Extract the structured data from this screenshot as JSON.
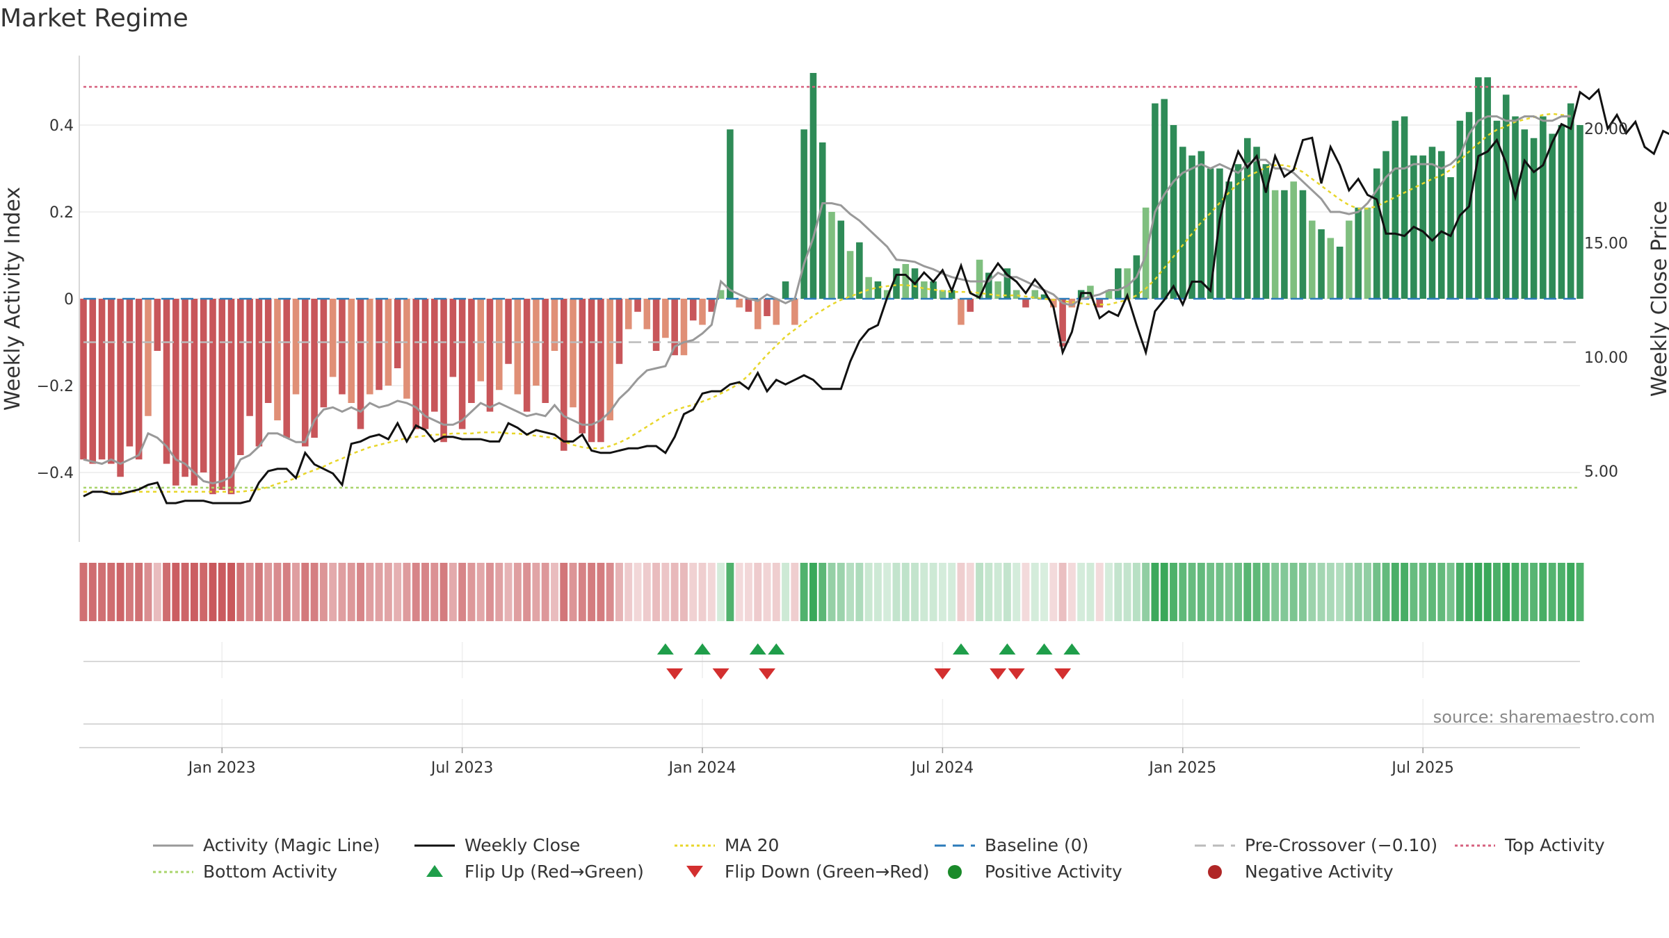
{
  "chart_data": {
    "type": "bar",
    "title": "Market Regime",
    "source": "source: sharemaestro.com",
    "ylabel_left": "Weekly Activity Index",
    "ylabel_right": "Weekly Close Price",
    "left_yticks": [
      "−0.4",
      "−0.2",
      "0",
      "0.2",
      "0.4"
    ],
    "left_ytick_values": [
      -0.4,
      -0.2,
      0,
      0.2,
      0.4
    ],
    "right_yticks": [
      "5.00",
      "10.00",
      "15.00",
      "20.00"
    ],
    "right_ytick_values": [
      5,
      10,
      15,
      20
    ],
    "left_ylim": [
      -0.56,
      0.56
    ],
    "right_ylim": [
      1.9,
      23.2
    ],
    "x_start": "2022-10-03",
    "x_ticks": [
      {
        "label": "Jan 2023",
        "week": 15
      },
      {
        "label": "Jul 2023",
        "week": 41
      },
      {
        "label": "Jan 2024",
        "week": 67
      },
      {
        "label": "Jul 2024",
        "week": 93
      },
      {
        "label": "Jan 2025",
        "week": 119
      },
      {
        "label": "Jul 2025",
        "week": 145
      }
    ],
    "reference_lines": {
      "baseline": 0,
      "pre_crossover": -0.1,
      "top_activity": 0.488,
      "bottom_activity": -0.435
    },
    "activity": [
      -0.37,
      -0.38,
      -0.37,
      -0.38,
      -0.41,
      -0.34,
      -0.37,
      -0.27,
      -0.12,
      -0.38,
      -0.43,
      -0.41,
      -0.43,
      -0.4,
      -0.45,
      -0.44,
      -0.45,
      -0.36,
      -0.27,
      -0.34,
      -0.24,
      -0.28,
      -0.32,
      -0.22,
      -0.34,
      -0.32,
      -0.25,
      -0.18,
      -0.22,
      -0.24,
      -0.3,
      -0.22,
      -0.21,
      -0.2,
      -0.16,
      -0.23,
      -0.3,
      -0.3,
      -0.26,
      -0.33,
      -0.18,
      -0.3,
      -0.24,
      -0.19,
      -0.26,
      -0.21,
      -0.15,
      -0.22,
      -0.26,
      -0.2,
      -0.24,
      -0.12,
      -0.35,
      -0.25,
      -0.31,
      -0.33,
      -0.33,
      -0.28,
      -0.15,
      -0.07,
      -0.03,
      -0.07,
      -0.12,
      -0.09,
      -0.13,
      -0.13,
      -0.05,
      -0.06,
      -0.03,
      0.02,
      0.39,
      -0.02,
      -0.03,
      -0.07,
      -0.04,
      -0.06,
      0.04,
      -0.06,
      0.39,
      0.52,
      0.36,
      0.2,
      0.18,
      0.11,
      0.13,
      0.05,
      0.04,
      0.02,
      0.07,
      0.08,
      0.07,
      0.04,
      0.04,
      0.02,
      0.02,
      -0.06,
      -0.03,
      0.09,
      0.06,
      0.04,
      0.07,
      0.02,
      -0.02,
      0.02,
      0.01,
      -0.02,
      -0.11,
      -0.02,
      0.02,
      0.03,
      -0.02,
      0.02,
      0.07,
      0.07,
      0.1,
      0.21,
      0.45,
      0.46,
      0.4,
      0.35,
      0.33,
      0.34,
      0.3,
      0.3,
      0.27,
      0.31,
      0.37,
      0.35,
      0.31,
      0.25,
      0.25,
      0.27,
      0.25,
      0.18,
      0.16,
      0.14,
      0.12,
      0.18,
      0.21,
      0.21,
      0.3,
      0.34,
      0.41,
      0.42,
      0.33,
      0.33,
      0.35,
      0.34,
      0.28,
      0.41,
      0.43,
      0.51,
      0.51,
      0.41,
      0.47,
      0.42,
      0.39,
      0.37,
      0.42,
      0.38,
      0.4,
      0.45,
      0.4
    ],
    "activity_magic_line": [
      -0.37,
      -0.375,
      -0.38,
      -0.37,
      -0.38,
      -0.37,
      -0.36,
      -0.31,
      -0.32,
      -0.34,
      -0.37,
      -0.38,
      -0.4,
      -0.42,
      -0.425,
      -0.42,
      -0.41,
      -0.37,
      -0.36,
      -0.34,
      -0.31,
      -0.31,
      -0.32,
      -0.33,
      -0.33,
      -0.28,
      -0.255,
      -0.25,
      -0.26,
      -0.25,
      -0.26,
      -0.24,
      -0.25,
      -0.245,
      -0.235,
      -0.24,
      -0.25,
      -0.27,
      -0.28,
      -0.29,
      -0.29,
      -0.28,
      -0.26,
      -0.24,
      -0.25,
      -0.24,
      -0.25,
      -0.26,
      -0.27,
      -0.265,
      -0.27,
      -0.245,
      -0.27,
      -0.28,
      -0.29,
      -0.29,
      -0.28,
      -0.26,
      -0.23,
      -0.21,
      -0.185,
      -0.165,
      -0.16,
      -0.155,
      -0.11,
      -0.1,
      -0.095,
      -0.08,
      -0.06,
      0.04,
      0.02,
      0.01,
      0.0,
      -0.005,
      0.01,
      0.0,
      -0.01,
      0.0,
      0.08,
      0.14,
      0.22,
      0.22,
      0.215,
      0.195,
      0.18,
      0.16,
      0.14,
      0.12,
      0.09,
      0.088,
      0.085,
      0.075,
      0.068,
      0.058,
      0.05,
      0.045,
      0.04,
      0.04,
      0.04,
      0.06,
      0.05,
      0.05,
      0.04,
      0.03,
      0.02,
      0.01,
      -0.01,
      -0.015,
      0.0,
      0.005,
      0.01,
      0.02,
      0.02,
      0.03,
      0.05,
      0.1,
      0.2,
      0.24,
      0.27,
      0.29,
      0.3,
      0.31,
      0.3,
      0.31,
      0.3,
      0.29,
      0.31,
      0.32,
      0.32,
      0.3,
      0.3,
      0.29,
      0.27,
      0.25,
      0.23,
      0.2,
      0.2,
      0.195,
      0.2,
      0.22,
      0.25,
      0.28,
      0.3,
      0.3,
      0.31,
      0.31,
      0.31,
      0.3,
      0.31,
      0.33,
      0.38,
      0.41,
      0.42,
      0.42,
      0.41,
      0.41,
      0.42,
      0.42,
      0.41,
      0.41,
      0.42,
      0.42
    ],
    "weekly_close": [
      3.9,
      4.1,
      4.1,
      4.0,
      4.0,
      4.1,
      4.2,
      4.4,
      4.5,
      3.6,
      3.6,
      3.7,
      3.7,
      3.7,
      3.6,
      3.6,
      3.6,
      3.6,
      3.7,
      4.5,
      5.0,
      5.1,
      5.1,
      4.7,
      5.8,
      5.3,
      5.1,
      4.9,
      4.4,
      6.2,
      6.3,
      6.5,
      6.6,
      6.4,
      7.1,
      6.3,
      7.0,
      6.8,
      6.3,
      6.5,
      6.5,
      6.4,
      6.4,
      6.4,
      6.3,
      6.3,
      7.1,
      6.9,
      6.6,
      6.8,
      6.7,
      6.6,
      6.3,
      6.3,
      6.6,
      5.9,
      5.8,
      5.8,
      5.9,
      6.0,
      6.0,
      6.1,
      6.1,
      5.8,
      6.5,
      7.5,
      7.7,
      8.4,
      8.5,
      8.5,
      8.8,
      8.9,
      8.6,
      9.3,
      8.5,
      9.0,
      8.8,
      9.0,
      9.2,
      9.0,
      8.6,
      8.6,
      8.6,
      9.8,
      10.7,
      11.2,
      11.4,
      12.6,
      13.6,
      13.6,
      13.2,
      13.7,
      13.3,
      13.8,
      12.9,
      14.0,
      12.8,
      12.6,
      13.5,
      14.1,
      13.6,
      13.3,
      12.8,
      13.4,
      12.9,
      12.2,
      10.2,
      11.1,
      12.8,
      12.8,
      11.7,
      12.0,
      11.8,
      12.7,
      11.4,
      10.2,
      12.0,
      12.5,
      13.1,
      12.3,
      13.3,
      13.3,
      12.9,
      16.0,
      17.8,
      19.0,
      18.3,
      18.8,
      17.2,
      18.8,
      17.9,
      18.2,
      19.5,
      19.6,
      17.6,
      19.2,
      18.4,
      17.3,
      17.8,
      17.1,
      16.9,
      15.4,
      15.4,
      15.3,
      15.7,
      15.5,
      15.1,
      15.5,
      15.3,
      16.2,
      16.6,
      18.8,
      19.0,
      19.5,
      18.5,
      17.0,
      18.6,
      18.1,
      18.4,
      19.4,
      20.2,
      20.0,
      21.6,
      21.3,
      21.7,
      20.0,
      20.6,
      19.8,
      20.3,
      19.2,
      18.9,
      19.9,
      19.7,
      20.8,
      20.3,
      20.5,
      20.7
    ],
    "ma20": [
      4.1,
      4.1,
      4.1,
      4.1,
      4.1,
      4.1,
      4.1,
      4.1,
      4.1,
      4.1,
      4.1,
      4.1,
      4.1,
      4.1,
      4.1,
      4.1,
      4.1,
      4.1,
      4.15,
      4.2,
      4.3,
      4.45,
      4.55,
      4.7,
      4.9,
      5.05,
      5.2,
      5.4,
      5.55,
      5.75,
      5.9,
      6.05,
      6.15,
      6.25,
      6.35,
      6.45,
      6.5,
      6.55,
      6.6,
      6.6,
      6.65,
      6.65,
      6.65,
      6.7,
      6.7,
      6.7,
      6.65,
      6.65,
      6.6,
      6.55,
      6.5,
      6.45,
      6.3,
      6.15,
      6.05,
      6.0,
      6.0,
      6.1,
      6.25,
      6.45,
      6.7,
      6.95,
      7.2,
      7.45,
      7.65,
      7.8,
      7.9,
      8.05,
      8.2,
      8.4,
      8.6,
      8.85,
      9.2,
      9.65,
      10.1,
      10.5,
      10.9,
      11.2,
      11.5,
      11.8,
      12.05,
      12.3,
      12.5,
      12.65,
      12.8,
      12.95,
      13.05,
      13.1,
      13.15,
      13.15,
      13.1,
      13.0,
      12.95,
      12.9,
      12.85,
      12.85,
      12.85,
      12.8,
      12.75,
      12.7,
      12.7,
      12.7,
      12.65,
      12.6,
      12.55,
      12.5,
      12.45,
      12.4,
      12.35,
      12.3,
      12.3,
      12.3,
      12.4,
      12.5,
      12.7,
      13.0,
      13.4,
      13.9,
      14.4,
      14.9,
      15.4,
      15.9,
      16.3,
      16.75,
      17.2,
      17.6,
      17.9,
      18.1,
      18.3,
      18.4,
      18.4,
      18.3,
      18.1,
      17.8,
      17.5,
      17.2,
      16.9,
      16.65,
      16.5,
      16.5,
      16.6,
      16.8,
      17.0,
      17.2,
      17.4,
      17.6,
      17.8,
      17.95,
      18.2,
      18.6,
      19.0,
      19.35,
      19.7,
      19.95,
      20.1,
      20.3,
      20.4,
      20.5,
      20.6,
      20.65,
      20.6,
      20.55
    ],
    "flip_up_weeks": [
      63,
      67,
      73,
      75,
      95,
      100,
      104,
      107
    ],
    "flip_down_weeks": [
      64,
      69,
      74,
      93,
      99,
      101,
      106
    ],
    "legend": [
      "Activity (Magic Line)",
      "Weekly Close",
      "MA 20",
      "Baseline (0)",
      "Pre-Crossover (−0.10)",
      "Top Activity",
      "Bottom Activity",
      "Flip Up (Red→Green)",
      "Flip Down (Green→Red)",
      "Positive Activity",
      "Negative Activity"
    ]
  },
  "colors": {
    "neg_strong": "#c8565a",
    "neg_light": "#e08f76",
    "pos_strong": "#2e8b57",
    "pos_light": "#7fbf7f",
    "magic_line": "#999999",
    "weekly_close": "#111111",
    "ma20": "#e8d62a",
    "baseline": "#2b7bba",
    "pre_crossover": "#bbbbbb",
    "top_activity": "#d6607e",
    "bottom_activity": "#a9d46b",
    "flip_up": "#1f9e4a",
    "flip_down": "#d32f2f",
    "positive_marker": "#1a8a2a",
    "negative_marker": "#b02626"
  }
}
